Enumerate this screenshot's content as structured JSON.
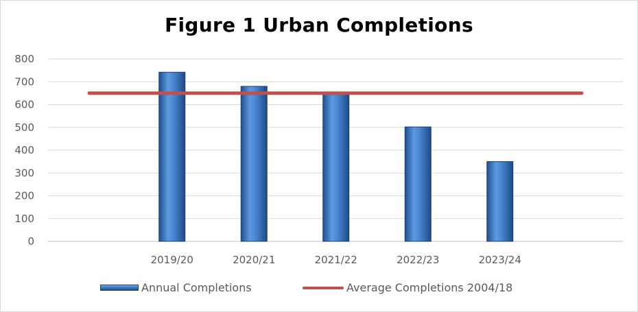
{
  "chart_data": {
    "type": "bar",
    "title": "Figure 1 Urban Completions",
    "categories": [
      "2019/20",
      "2020/21",
      "2021/22",
      "2022/23",
      "2023/24"
    ],
    "series": [
      {
        "name": "Annual Completions",
        "type": "bar",
        "values": [
          742,
          680,
          650,
          502,
          350
        ],
        "color": "#3a78c9"
      },
      {
        "name": "Average Completions 2004/18",
        "type": "line",
        "value": 650,
        "color": "#c0504d"
      }
    ],
    "y_ticks": [
      "800",
      "700",
      "600",
      "500",
      "400",
      "300",
      "200",
      "100",
      "0"
    ],
    "ylim": [
      0,
      800
    ],
    "grid": true,
    "legend_position": "bottom"
  }
}
